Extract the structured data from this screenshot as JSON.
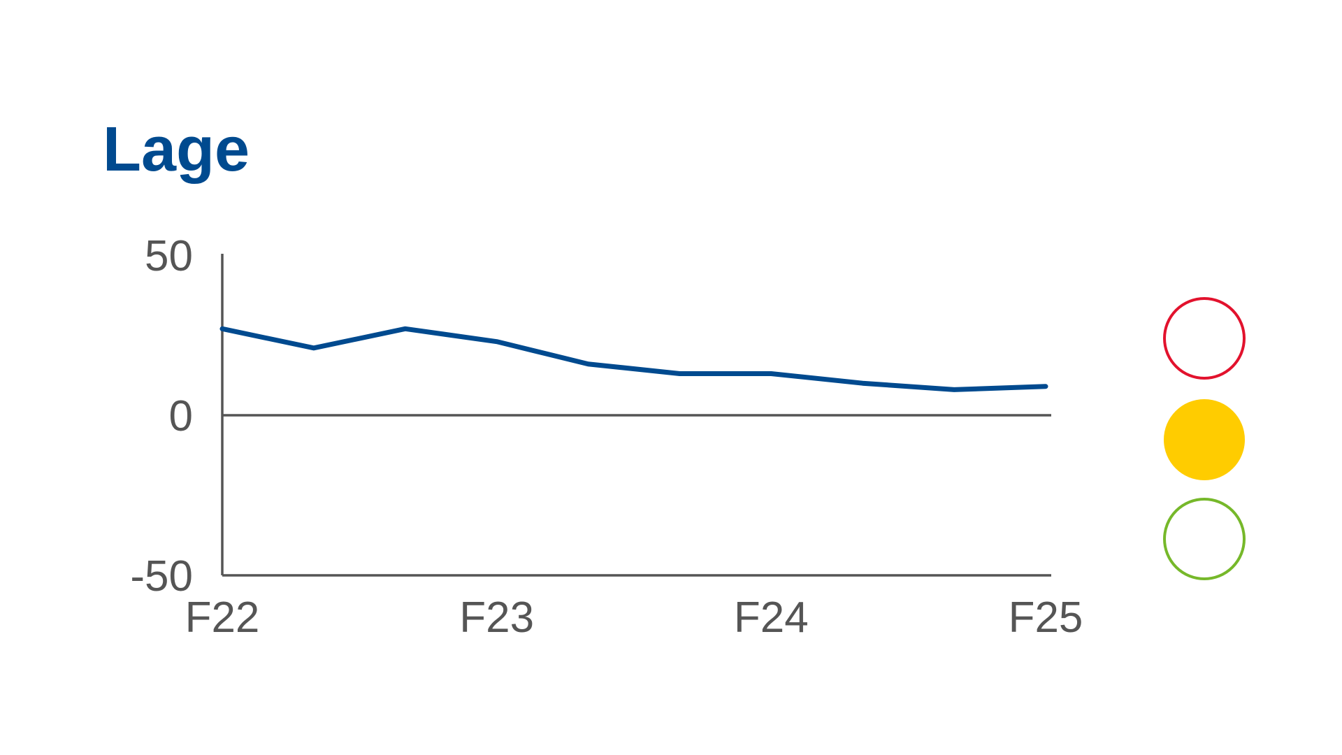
{
  "chart_data": {
    "type": "line",
    "title": "Lage",
    "categories": [
      "F22",
      null,
      null,
      "F23",
      null,
      null,
      "F24",
      null,
      null,
      "F25"
    ],
    "series": [
      {
        "color": "#004a8f",
        "values": [
          27,
          21,
          27,
          23,
          16,
          13,
          13,
          10,
          8,
          9
        ]
      }
    ],
    "ylim": [
      -50,
      50
    ],
    "yticks": [
      -50,
      0,
      50
    ],
    "zeroline": true
  }
}
